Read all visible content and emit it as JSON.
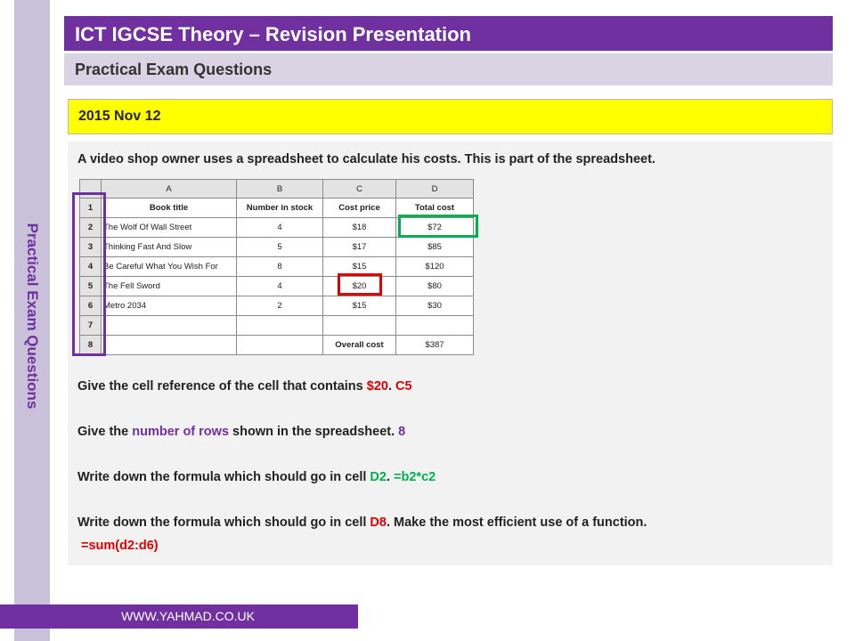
{
  "side_label": "Practical Exam Questions",
  "title": "ICT IGCSE Theory – Revision Presentation",
  "subtitle": "Practical Exam Questions",
  "date": "2015 Nov 12",
  "intro": "A video shop owner uses a spreadsheet to calculate his costs. This is part of the spreadsheet.",
  "spreadsheet": {
    "column_headers": [
      "A",
      "B",
      "C",
      "D"
    ],
    "row_numbers": [
      "1",
      "2",
      "3",
      "4",
      "5",
      "6",
      "7",
      "8"
    ],
    "header_row": [
      "Book title",
      "Number in stock",
      "Cost price",
      "Total cost"
    ],
    "rows": [
      [
        "The Wolf Of Wall Street",
        "4",
        "$18",
        "$72"
      ],
      [
        "Thinking Fast And Slow",
        "5",
        "$17",
        "$85"
      ],
      [
        "Be Careful What You Wish For",
        "8",
        "$15",
        "$120"
      ],
      [
        "The Fell Sword",
        "4",
        "$20",
        "$80"
      ],
      [
        "Metro 2034",
        "2",
        "$15",
        "$30"
      ],
      [
        "",
        "",
        "",
        ""
      ]
    ],
    "overall_label": "Overall cost",
    "overall_value": "$387"
  },
  "questions": {
    "q1": {
      "text": "Give the cell reference of the cell that contains ",
      "highlight": "$20",
      "sep": ". ",
      "answer": "C5"
    },
    "q2": {
      "pre": "Give the ",
      "highlight": "number of rows",
      "post": " shown in the spreadsheet. ",
      "answer": "8"
    },
    "q3": {
      "text": "Write down the formula which should go in cell ",
      "highlight": "D2",
      "sep": ". ",
      "answer": "=b2*c2"
    },
    "q4": {
      "text": "Write down the formula which should go in cell ",
      "highlight": "D8",
      "post": ". Make the most efficient use of a function.",
      "answer": "=sum(d2:d6)"
    }
  },
  "footer": "WWW.YAHMAD.CO.UK",
  "colors": {
    "purple": "#7030a0",
    "red": "#e00000",
    "green": "#00b050",
    "yellow": "#ffff00"
  }
}
